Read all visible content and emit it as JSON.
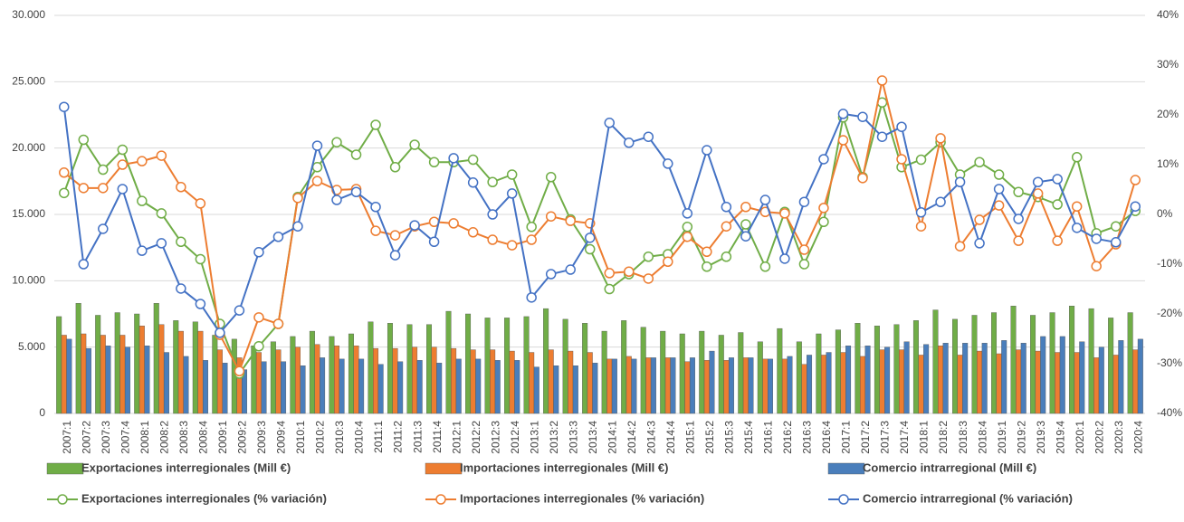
{
  "chart_data": {
    "type": "combo",
    "categories": [
      "2007:1",
      "2007:2",
      "2007:3",
      "2007:4",
      "2008:1",
      "2008:2",
      "2008:3",
      "2008:4",
      "2009:1",
      "2009:2",
      "2009:3",
      "2009:4",
      "2010:1",
      "2010:2",
      "2010:3",
      "2010:4",
      "2011:1",
      "2011:2",
      "2011:3",
      "2011:4",
      "2012:1",
      "2012:2",
      "2012:3",
      "2012:4",
      "2013:1",
      "2013:2",
      "2013:3",
      "2013:4",
      "2014:1",
      "2014:2",
      "2014:3",
      "2014:4",
      "2015:1",
      "2015:2",
      "2015:3",
      "2015:4",
      "2016:1",
      "2016:2",
      "2016:3",
      "2016:4",
      "2017:1",
      "2017:2",
      "2017:3",
      "2017:4",
      "2018:1",
      "2018:2",
      "2018:3",
      "2018:4",
      "2019:1",
      "2019:2",
      "2019:3",
      "2019:4",
      "2020:1",
      "2020:2",
      "2020:3",
      "2020:4"
    ],
    "series": [
      {
        "name": "Exportaciones interregionales (Mill €)",
        "type": "bar",
        "color": "#70ad47",
        "values": [
          7300,
          8300,
          7400,
          7600,
          7500,
          8300,
          7000,
          6900,
          5900,
          5600,
          5100,
          5400,
          5800,
          6200,
          5800,
          6000,
          6900,
          6800,
          6700,
          6700,
          7700,
          7500,
          7200,
          7200,
          7300,
          7900,
          7100,
          6800,
          6200,
          7000,
          6500,
          6200,
          6000,
          6200,
          5900,
          6100,
          5400,
          6400,
          5400,
          6000,
          6300,
          6800,
          6600,
          6700,
          7000,
          7800,
          7100,
          7400,
          7600,
          8100,
          7400,
          7600,
          8100,
          7900,
          7200,
          7600
        ]
      },
      {
        "name": "Importaciones interregionales (Mill €)",
        "type": "bar",
        "color": "#ed7d31",
        "values": [
          5900,
          6000,
          5900,
          5900,
          6600,
          6700,
          6200,
          6200,
          4800,
          4200,
          4600,
          4800,
          5000,
          5200,
          5100,
          5100,
          4900,
          4900,
          5000,
          5000,
          4900,
          4800,
          4800,
          4700,
          4600,
          4800,
          4700,
          4600,
          4100,
          4300,
          4200,
          4200,
          3900,
          4000,
          4000,
          4200,
          4100,
          4100,
          3700,
          4400,
          4600,
          4300,
          4800,
          4800,
          4400,
          5100,
          4400,
          4700,
          4500,
          4800,
          4700,
          4600,
          4600,
          4200,
          4400,
          4800
        ]
      },
      {
        "name": "Comercio intrarregional (Mill €)",
        "type": "bar",
        "color": "#4a7ebb",
        "values": [
          5600,
          4900,
          5100,
          5000,
          5100,
          4600,
          4300,
          4000,
          3800,
          3300,
          3900,
          3900,
          3600,
          4200,
          4100,
          4100,
          3700,
          3900,
          4000,
          3800,
          4100,
          4100,
          4000,
          4000,
          3500,
          3600,
          3600,
          3800,
          4100,
          4100,
          4200,
          4200,
          4200,
          4700,
          4200,
          4200,
          4100,
          4300,
          4400,
          4600,
          5100,
          5100,
          5000,
          5400,
          5200,
          5300,
          5300,
          5300,
          5500,
          5300,
          5800,
          5800,
          5400,
          5000,
          5500,
          5600
        ]
      },
      {
        "name": "Exportaciones interregionales  (% variación)",
        "type": "line",
        "axis": "y2",
        "color": "#70ad47",
        "values": [
          4.3,
          15,
          9,
          13,
          2.7,
          0.2,
          -5.5,
          -9,
          -22,
          -32,
          -26.5,
          -22,
          3.5,
          9.5,
          14.5,
          12,
          18,
          9.5,
          14,
          10.5,
          10.5,
          11,
          6.5,
          8,
          -2.5,
          7.5,
          -1,
          -7,
          -15,
          -12,
          -8.5,
          -8,
          -2.5,
          -10.5,
          -8.5,
          -2,
          -10.5,
          0.5,
          -10,
          -1.5,
          19.5,
          7.5,
          22.5,
          9.5,
          11,
          14.5,
          8,
          10.5,
          8,
          4.5,
          3.5,
          2,
          11.5,
          -3.8,
          -2.4,
          0.7
        ]
      },
      {
        "name": "Importaciones interregionales (% variación)",
        "type": "line",
        "axis": "y2",
        "color": "#ed7d31",
        "values": [
          8.4,
          5.3,
          5.3,
          10,
          10.7,
          11.8,
          5.5,
          2.2,
          -24.2,
          -31.5,
          -20.7,
          -22,
          3.3,
          6.7,
          4.9,
          5.1,
          -3.3,
          -4.2,
          -2.4,
          -1.5,
          -1.8,
          -3.6,
          -5.1,
          -6.2,
          -5.1,
          -0.4,
          -1.3,
          -1.8,
          -11.8,
          -11.5,
          -12.9,
          -9.5,
          -4.5,
          -7.5,
          -2.4,
          1.5,
          0.5,
          0.2,
          -7.1,
          1.3,
          14.9,
          7.3,
          26.9,
          11.1,
          -2.4,
          15.3,
          -6.4,
          -1.1,
          1.8,
          -5.3,
          4.2,
          -5.3,
          1.6,
          -10.4,
          -6,
          6.9
        ]
      },
      {
        "name": "Comercio intrarregional (% variación)",
        "type": "line",
        "axis": "y2",
        "color": "#4472c4",
        "values": [
          21.6,
          -10,
          -2.9,
          5.1,
          -7.3,
          -5.8,
          -14.9,
          -18,
          -23.8,
          -19.3,
          -7.6,
          -4.5,
          -2.4,
          13.8,
          2.9,
          4.5,
          1.5,
          -8.2,
          -2.2,
          -5.5,
          11.3,
          6.4,
          0,
          4.2,
          -16.7,
          -12,
          -11.1,
          -4.7,
          18.4,
          14.4,
          15.6,
          10.2,
          0.2,
          12.9,
          1.5,
          -4.4,
          2.9,
          -8.9,
          2.5,
          11.1,
          20.2,
          19.6,
          15.6,
          17.6,
          0.4,
          2.5,
          6.5,
          -5.8,
          5.1,
          -0.9,
          6.5,
          7.1,
          -2.7,
          -4.9,
          -5.6,
          1.6
        ]
      }
    ],
    "ylim": [
      0,
      30000
    ],
    "yticks": [
      0,
      {
        "value": 5000,
        "label": "5.000"
      },
      {
        "value": 10000,
        "label": "10.000"
      },
      {
        "value": 15000,
        "label": "15.000"
      },
      {
        "value": 20000,
        "label": "20.000"
      },
      {
        "value": 25000,
        "label": "25.000"
      },
      {
        "value": 30000,
        "label": "30.000"
      }
    ],
    "y2lim": [
      -40,
      40
    ],
    "y2ticks": [
      {
        "value": -40,
        "label": "-40%"
      },
      {
        "value": -30,
        "label": "-30%"
      },
      {
        "value": -20,
        "label": "-20%"
      },
      {
        "value": -10,
        "label": "-10%"
      },
      {
        "value": 0,
        "label": "0%"
      },
      {
        "value": 10,
        "label": "10%"
      },
      {
        "value": 20,
        "label": "20%"
      },
      {
        "value": 30,
        "label": "30%"
      },
      {
        "value": 40,
        "label": "40%"
      }
    ],
    "grid": true,
    "legend": "bottom"
  }
}
